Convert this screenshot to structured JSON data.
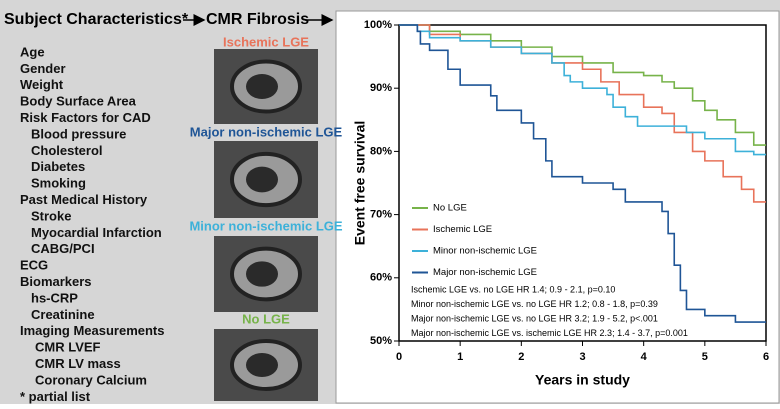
{
  "panel": {
    "header": "Subject Characteristics*",
    "fibrosis_header": "CMR Fibrosis",
    "items": [
      "Age",
      "Gender",
      "Weight",
      "Body Surface Area",
      "Risk Factors for CAD",
      "Blood pressure",
      "Cholesterol",
      "Diabetes",
      "Smoking",
      "Past Medical History",
      "Stroke",
      "Myocardial Infarction",
      "CABG/PCI",
      "ECG",
      "Biomarkers",
      "hs-CRP",
      "Creatinine",
      "Imaging Measurements",
      "CMR LVEF",
      "CMR LV mass",
      "Coronary Calcium",
      "* partial list"
    ],
    "images": [
      {
        "caption": "Ischemic LGE",
        "color": "#e8735a"
      },
      {
        "caption": "Major non-ischemic LGE",
        "color": "#1f5596"
      },
      {
        "caption": "Minor non-ischemic LGE",
        "color": "#3db1d9"
      },
      {
        "caption": "No LGE",
        "color": "#77b34a"
      }
    ]
  },
  "chart_data": {
    "type": "line",
    "step": true,
    "x_label": "Years in study",
    "y_label": "Event free survival",
    "xlim": [
      0,
      6
    ],
    "xticks": [
      0,
      1,
      2,
      3,
      4,
      5,
      6
    ],
    "ylim": [
      50,
      100
    ],
    "yticks": [
      {
        "value": 50,
        "label": "50%"
      },
      {
        "value": 60,
        "label": "60%"
      },
      {
        "value": 70,
        "label": "70%"
      },
      {
        "value": 80,
        "label": "80%"
      },
      {
        "value": 90,
        "label": "90%"
      },
      {
        "value": 100,
        "label": "100%"
      }
    ],
    "series": [
      {
        "name": "No LGE",
        "color": "#77b34a",
        "x": [
          0,
          0.5,
          1,
          1.5,
          2,
          2.5,
          3,
          3.5,
          4,
          4.3,
          4.5,
          4.8,
          5,
          5.2,
          5.5,
          5.8,
          6
        ],
        "values": [
          100,
          99,
          98.5,
          97.5,
          96.5,
          95,
          94,
          92.5,
          92,
          91,
          90,
          88,
          86.5,
          85,
          83,
          81,
          81
        ]
      },
      {
        "name": "Ischemic LGE",
        "color": "#e8735a",
        "x": [
          0,
          0.5,
          1,
          1.5,
          2,
          2.5,
          3,
          3.3,
          3.6,
          4,
          4.3,
          4.5,
          4.8,
          5,
          5.3,
          5.6,
          5.8,
          6
        ],
        "values": [
          100,
          98.5,
          97.5,
          96.5,
          95.5,
          94,
          93,
          91,
          89,
          87,
          86,
          83,
          80,
          78.5,
          76,
          74,
          72,
          72
        ]
      },
      {
        "name": "Minor non-ischemic LGE",
        "color": "#3db1d9",
        "x": [
          0,
          0.3,
          0.5,
          1,
          1.5,
          2,
          2.5,
          2.7,
          2.8,
          3,
          3.4,
          3.5,
          3.7,
          3.9,
          4.5,
          4.7,
          5,
          5.5,
          5.8,
          6
        ],
        "values": [
          100,
          99,
          98,
          97.5,
          96.5,
          95.5,
          94,
          92,
          91,
          90,
          89,
          87,
          85.5,
          84,
          84,
          83,
          82,
          80,
          79.5,
          79.5
        ]
      },
      {
        "name": "Major non-ischemic LGE",
        "color": "#1f5596",
        "x": [
          0,
          0.3,
          0.35,
          0.5,
          0.8,
          1,
          1.5,
          1.6,
          2,
          2.2,
          2.4,
          2.5,
          3,
          3.5,
          3.7,
          4,
          4.3,
          4.4,
          4.5,
          4.6,
          4.7,
          5,
          5.5,
          6
        ],
        "values": [
          100,
          99,
          97,
          96,
          93,
          90.5,
          88.8,
          86.5,
          84.5,
          82,
          78.5,
          76,
          75,
          74,
          72,
          72,
          70.5,
          67,
          62,
          58,
          55,
          54,
          53,
          53
        ]
      }
    ],
    "annotations": [
      "Ischemic LGE vs. no LGE HR 1.4; 0.9 - 2.1, p=0.10",
      "Minor non-ischemic LGE vs. no LGE HR 1.2; 0.8 - 1.8, p=0.39",
      "Major non-ischemic LGE vs. no LGE HR 3.2; 1.9 - 5.2, p<.001",
      "Major non-ischemic LGE vs. ischemic LGE HR 2.3; 1.4 - 3.7, p=0.001"
    ]
  }
}
